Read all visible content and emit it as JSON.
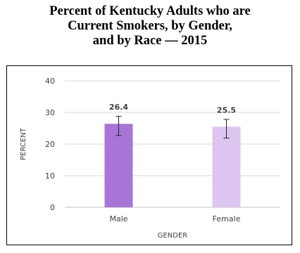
{
  "chart_data": {
    "type": "bar",
    "title_lines": [
      "Percent of Kentucky Adults who are",
      "Current Smokers, by Gender,",
      "and by Race — 2015"
    ],
    "categories": [
      "Male",
      "Female"
    ],
    "values": [
      26.4,
      25.5
    ],
    "data_labels": [
      "26.4",
      "25.5"
    ],
    "error_low": [
      22.7,
      21.9
    ],
    "error_high": [
      28.8,
      27.8
    ],
    "colors": [
      "#a875d6",
      "#dcc6ef"
    ],
    "xlabel": "GENDER",
    "ylabel": "PERCENT",
    "ylim": [
      0,
      40
    ],
    "yticks": [
      "0",
      "10",
      "20",
      "30",
      "40"
    ],
    "grid": true,
    "legend": "none"
  }
}
